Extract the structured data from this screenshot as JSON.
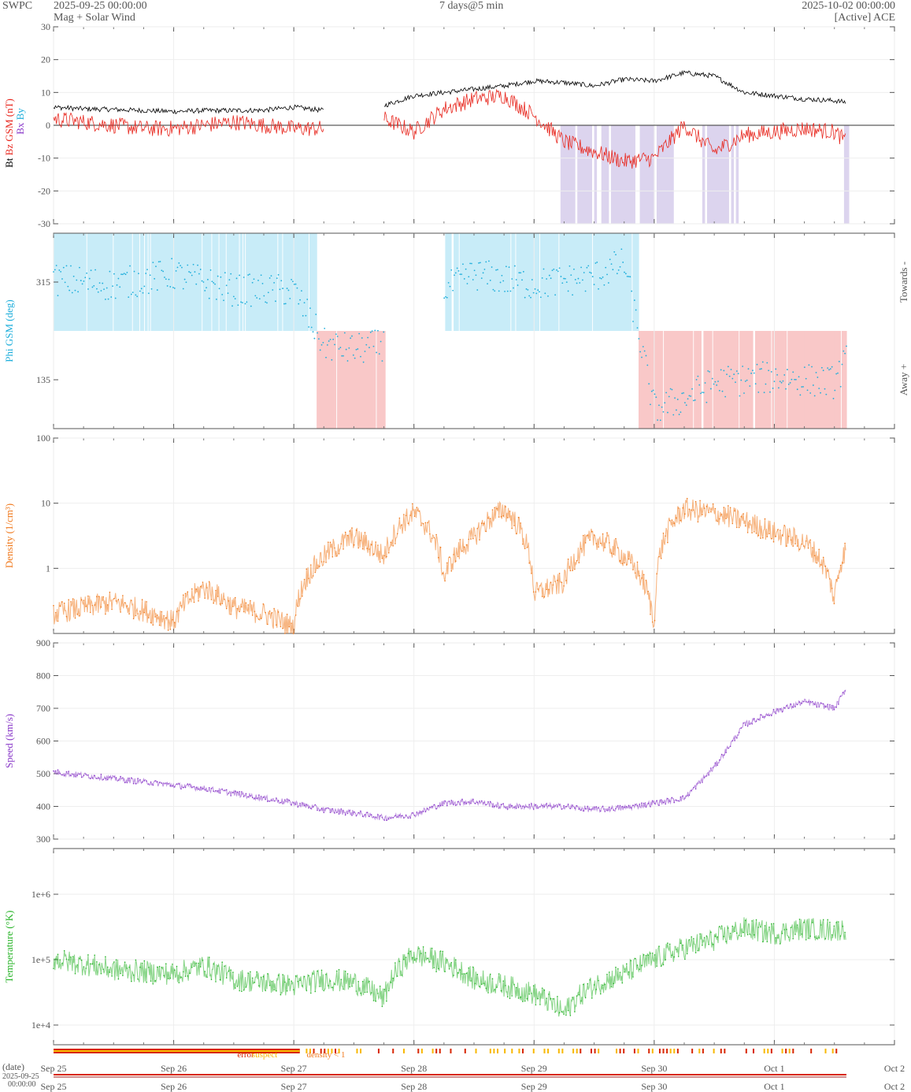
{
  "header": {
    "source": "SWPC",
    "start": "2025-09-25 00:00:00",
    "subtitle": "Mag + Solar Wind",
    "span": "7 days@5 min",
    "end": "2025-10-02 00:00:00",
    "satellite": "[Active] ACE"
  },
  "colors": {
    "bt": "#000000",
    "bz": "#e8281f",
    "bx": "#8a3ac9",
    "by": "#1eaedb",
    "phi": "#1eaedb",
    "density": "#f07a1e",
    "speed": "#8a3ac9",
    "temperature": "#2bb52b",
    "bz_south_shade": "#dcd4ee",
    "towards_shade": "#c8ecf8",
    "away_shade": "#f9c8c8",
    "error": "#d82600",
    "suspect": "#f8b800",
    "density_lt_1": "#f07a1e"
  },
  "x_axis": {
    "ticks": [
      "Sep 25",
      "Sep 26",
      "Sep 27",
      "Sep 28",
      "Sep 29",
      "Sep 30",
      "Oct 1",
      "Oct 2"
    ],
    "date_label": "(date)",
    "start_date": "2025-09-25",
    "start_time": "00:00:00"
  },
  "legend_quality": {
    "error": "error",
    "suspect": "suspect",
    "density_lt_1": "density < 1"
  },
  "chart_data": [
    {
      "type": "line",
      "name": "mag",
      "ylabel_parts": [
        "Bt",
        "Bz GSM (nT)"
      ],
      "legend": [
        "Bx",
        "By"
      ],
      "ylim": [
        -30,
        30
      ],
      "yticks": [
        -30,
        -20,
        -10,
        0,
        10,
        20,
        30
      ],
      "x": [
        0,
        0.25,
        0.5,
        0.75,
        1,
        1.25,
        1.5,
        1.75,
        2,
        2.25,
        2.5,
        2.75,
        3,
        3.25,
        3.5,
        3.75,
        4,
        4.25,
        4.5,
        4.75,
        5,
        5.25,
        5.5,
        5.75,
        6,
        6.25,
        6.5,
        6.6
      ],
      "series": [
        {
          "name": "Bt",
          "values": [
            5.5,
            5,
            4.8,
            4.5,
            4.2,
            4.5,
            4.5,
            4.6,
            5.5,
            4.5,
            null,
            6,
            9,
            10,
            11,
            12,
            13.5,
            13,
            12,
            14,
            13.5,
            16,
            15,
            10,
            9,
            8,
            7.5,
            7
          ]
        },
        {
          "name": "Bz",
          "values": [
            2,
            1,
            0,
            -1,
            -1,
            0,
            1,
            0,
            -1,
            -1,
            null,
            2,
            -2,
            5,
            8,
            9,
            3,
            -5,
            -8,
            -11,
            -10,
            0,
            -8,
            -3,
            -2,
            -1,
            -2,
            -5
          ]
        }
      ]
    },
    {
      "type": "scatter",
      "name": "phi",
      "ylabel": "Phi GSM (deg)",
      "right_labels": [
        "Towards -",
        "Away +"
      ],
      "yticks": [
        315,
        135
      ],
      "ylim": [
        45,
        405
      ],
      "x": [
        0,
        0.5,
        1,
        1.5,
        2,
        2.25,
        2.5,
        2.75,
        3,
        3.25,
        3.5,
        4,
        4.5,
        4.75,
        5,
        5.25,
        5.5,
        6,
        6.5,
        6.6
      ],
      "values": [
        320,
        310,
        330,
        300,
        300,
        200,
        190,
        200,
        null,
        300,
        330,
        310,
        325,
        350,
        80,
        100,
        130,
        140,
        130,
        170
      ]
    },
    {
      "type": "line",
      "name": "density",
      "ylabel": "Density (1/cm³)",
      "scale": "log",
      "ylim": [
        0.1,
        100
      ],
      "yticks": [
        1,
        10,
        100
      ],
      "x": [
        0,
        0.5,
        1,
        1.25,
        1.5,
        1.75,
        2,
        2.25,
        2.5,
        2.75,
        3,
        3.25,
        3.5,
        3.75,
        4,
        4.25,
        4.5,
        4.75,
        5,
        5.25,
        5.5,
        6,
        6.25,
        6.5,
        6.6
      ],
      "values": [
        0.2,
        0.3,
        0.15,
        0.5,
        0.25,
        0.2,
        0.12,
        1.5,
        3,
        1.5,
        7,
        0.7,
        3,
        8,
        0.4,
        0.6,
        3,
        1.5,
        0.1,
        8,
        7,
        3.5,
        2.5,
        0.3,
        2
      ]
    },
    {
      "type": "line",
      "name": "speed",
      "ylabel": "Speed (km/s)",
      "ylim": [
        300,
        900
      ],
      "yticks": [
        300,
        400,
        500,
        600,
        700,
        800,
        900
      ],
      "x": [
        0,
        0.5,
        1,
        1.25,
        1.5,
        1.75,
        2,
        2.25,
        2.5,
        2.75,
        3,
        3.25,
        3.5,
        3.75,
        4,
        4.25,
        4.5,
        4.75,
        5,
        5.25,
        5.5,
        5.75,
        6,
        6.25,
        6.5,
        6.6
      ],
      "values": [
        505,
        485,
        465,
        455,
        440,
        425,
        410,
        390,
        380,
        365,
        375,
        410,
        415,
        400,
        400,
        400,
        390,
        395,
        410,
        425,
        520,
        650,
        690,
        720,
        700,
        760
      ]
    },
    {
      "type": "line",
      "name": "temperature",
      "ylabel": "Temperature (°K)",
      "scale": "log",
      "ylim": [
        5000,
        5000000
      ],
      "yticks": [
        10000,
        100000,
        1000000
      ],
      "ytick_labels": [
        "1e+4",
        "1e+5",
        "1e+6"
      ],
      "x": [
        0,
        0.5,
        1,
        1.25,
        1.5,
        1.75,
        2,
        2.25,
        2.5,
        2.75,
        3,
        3.25,
        3.5,
        3.75,
        4,
        4.25,
        4.5,
        4.75,
        5,
        5.25,
        5.5,
        5.75,
        6,
        6.25,
        6.5,
        6.6
      ],
      "values": [
        100000,
        70000,
        60000,
        80000,
        50000,
        45000,
        40000,
        50000,
        45000,
        25000,
        120000,
        90000,
        50000,
        40000,
        30000,
        15000,
        40000,
        60000,
        100000,
        150000,
        200000,
        300000,
        250000,
        300000,
        280000,
        300000
      ]
    }
  ]
}
